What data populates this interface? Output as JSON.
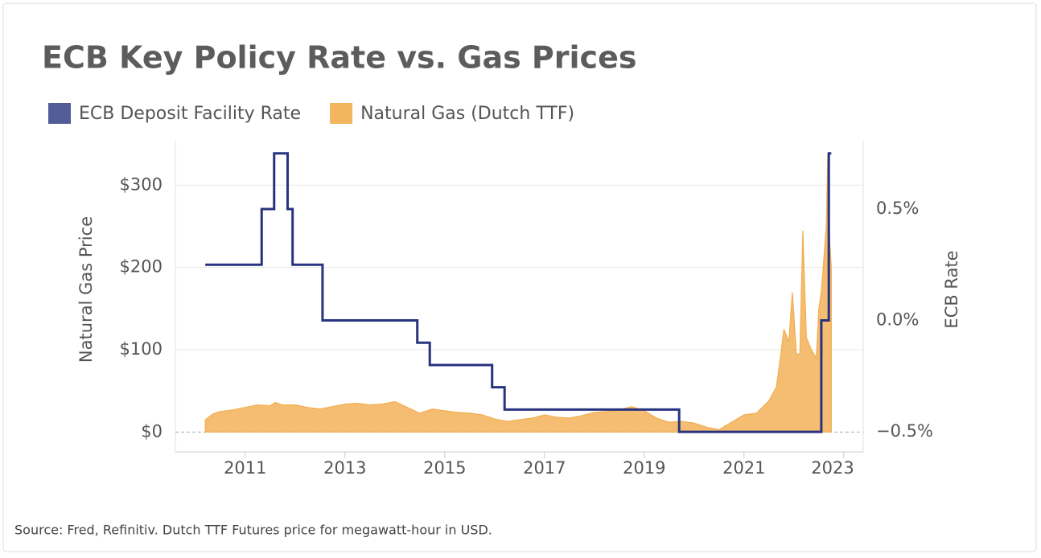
{
  "chart_data": {
    "type": "dual-axis-line-area",
    "title": "ECB Key Policy Rate vs. Gas Prices",
    "y_label": "Natural Gas Price",
    "y2_label": "ECB Rate",
    "source": "Source: Fred, Refinitiv. Dutch TTF Futures price for megawatt-hour in USD.",
    "xlim": [
      2009.6,
      2023.39
    ],
    "xticks": [
      2011,
      2013,
      2015,
      2017,
      2019,
      2021,
      2023
    ],
    "ylim": [
      -24,
      354
    ],
    "yticks": [
      {
        "value": 0,
        "label": "$0"
      },
      {
        "value": 100,
        "label": "$100"
      },
      {
        "value": 200,
        "label": "$200"
      },
      {
        "value": 300,
        "label": "$300"
      }
    ],
    "y2lim": [
      -0.59,
      0.807
    ],
    "y2ticks": [
      {
        "value": -0.5,
        "label": "−0.5%"
      },
      {
        "value": 0,
        "label": "0.0%"
      },
      {
        "value": 0.5,
        "label": "0.5%"
      }
    ],
    "grid": true,
    "series": [
      {
        "name": "ECB Deposit Facility Rate",
        "color": "#27337f",
        "kind": "step",
        "axis": "y2",
        "x": [
          2010.2,
          2011.33,
          2011.58,
          2011.85,
          2011.95,
          2012.55,
          2014.45,
          2014.7,
          2015.95,
          2016.2,
          2019.7,
          2022.55,
          2022.7,
          2022.75
        ],
        "values": [
          0.25,
          0.5,
          0.75,
          0.5,
          0.25,
          0.0,
          -0.1,
          -0.2,
          -0.3,
          -0.4,
          -0.5,
          0.0,
          0.75,
          0.75
        ]
      },
      {
        "name": "Natural Gas (Dutch TTF)",
        "color": "#f2ad4e",
        "kind": "area",
        "axis": "y",
        "x": [
          2010.2,
          2010.35,
          2010.5,
          2010.75,
          2011.0,
          2011.25,
          2011.5,
          2011.6,
          2011.75,
          2012.0,
          2012.25,
          2012.5,
          2012.75,
          2013.0,
          2013.25,
          2013.5,
          2013.75,
          2014.0,
          2014.25,
          2014.5,
          2014.75,
          2015.0,
          2015.25,
          2015.5,
          2015.75,
          2016.0,
          2016.25,
          2016.5,
          2016.75,
          2017.0,
          2017.25,
          2017.5,
          2017.75,
          2018.0,
          2018.25,
          2018.5,
          2018.75,
          2019.0,
          2019.25,
          2019.5,
          2019.75,
          2020.0,
          2020.25,
          2020.5,
          2020.75,
          2021.0,
          2021.25,
          2021.5,
          2021.65,
          2021.75,
          2021.8,
          2021.9,
          2021.97,
          2022.05,
          2022.12,
          2022.18,
          2022.25,
          2022.35,
          2022.45,
          2022.5,
          2022.55,
          2022.6,
          2022.65,
          2022.68,
          2022.72,
          2022.75
        ],
        "values": [
          15,
          22,
          25,
          27,
          30,
          33,
          32,
          36,
          33,
          33,
          30,
          28,
          31,
          34,
          35,
          33,
          34,
          37,
          30,
          23,
          28,
          26,
          24,
          23,
          21,
          16,
          13,
          15,
          17,
          21,
          18,
          17,
          20,
          24,
          25,
          27,
          31,
          26,
          17,
          12,
          13,
          11,
          6,
          3,
          12,
          21,
          23,
          38,
          55,
          100,
          125,
          110,
          170,
          95,
          95,
          245,
          115,
          100,
          90,
          150,
          170,
          210,
          250,
          338,
          230,
          200
        ]
      }
    ]
  }
}
